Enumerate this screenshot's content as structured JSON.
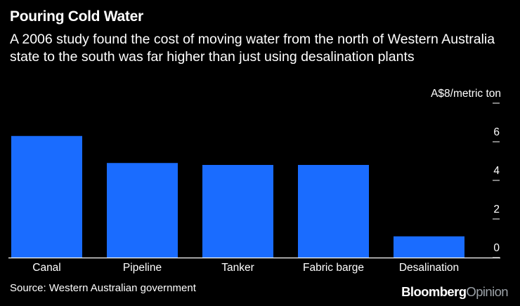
{
  "header": {
    "title": "Pouring Cold Water",
    "subtitle": "A 2006 study found the cost of moving water from the north of Western Australia state to the south was far higher than just using desalination plants"
  },
  "footer": {
    "source": "Source: Western Australian government",
    "brand_part1": "Bloomberg",
    "brand_part2": "Opinion"
  },
  "colors": {
    "background": "#000000",
    "bar": "#1a6cff",
    "text": "#ffffff",
    "axis": "#ffffff"
  },
  "chart_data": {
    "type": "bar",
    "title": "Pouring Cold Water",
    "categories": [
      "Canal",
      "Pipeline",
      "Tanker",
      "Fabric barge",
      "Desalination"
    ],
    "values": [
      6.3,
      4.9,
      4.8,
      4.8,
      1.1
    ],
    "ylim": [
      0,
      8
    ],
    "yticks": [
      0,
      2,
      4,
      6,
      8
    ],
    "ytick_labels": [
      "0",
      "2",
      "4",
      "6",
      "A$8/metric ton"
    ],
    "ylabel": "A$/metric ton",
    "xlabel": "",
    "axis_side": "right",
    "grid": false
  }
}
